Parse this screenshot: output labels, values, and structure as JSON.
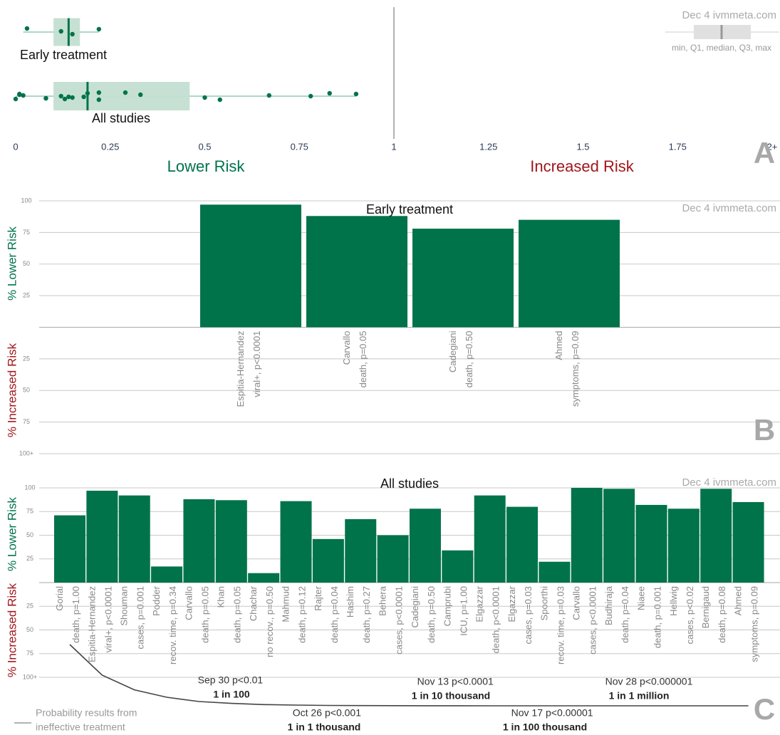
{
  "chart_data": [
    {
      "type": "box",
      "panel": "A",
      "watermark": "Dec 4 ivmmeta.com",
      "legend": "min, Q1, median, Q3, max",
      "lower_label": "Lower Risk",
      "higher_label": "Increased Risk",
      "xlim": [
        0,
        2
      ],
      "xticks": [
        0,
        0.25,
        0.5,
        0.75,
        1,
        1.25,
        1.5,
        1.75,
        {
          "value": 2,
          "label": "2+"
        }
      ],
      "color": "#00734a",
      "groups": [
        {
          "name": "Early treatment",
          "min": 0.02,
          "q1": 0.1,
          "median": 0.14,
          "q3": 0.17,
          "max": 0.22,
          "points": [
            0.03,
            0.12,
            0.15,
            0.22
          ]
        },
        {
          "name": "All studies",
          "min": 0.0,
          "q1": 0.1,
          "median": 0.19,
          "q3": 0.46,
          "max": 0.9,
          "points": [
            0.29,
            0.02,
            0.08,
            0.83,
            0.12,
            0.13,
            0.9,
            0.14,
            0.54,
            0.33,
            0.5,
            0.22,
            0.67,
            0.08,
            0.19,
            0.78,
            0.0,
            0.01,
            0.18,
            0.22,
            0.01,
            0.15
          ]
        }
      ]
    },
    {
      "type": "bar",
      "panel": "B",
      "title": "Early treatment",
      "watermark": "Dec 4 ivmmeta.com",
      "ylabel_positive": "% Lower Risk",
      "ylabel_negative": "% Increased Risk",
      "color": "#00734a",
      "ylim": [
        -100,
        100
      ],
      "yticks": [
        100,
        75,
        50,
        25,
        {
          "value": -25,
          "label": "25"
        },
        {
          "value": -50,
          "label": "50"
        },
        {
          "value": -75,
          "label": "75"
        },
        {
          "value": -100,
          "label": "100+"
        }
      ],
      "categories": [
        "Espitia-Hernandez",
        "Carvallo",
        "Cadegiani",
        "Ahmed"
      ],
      "details": [
        "viral+, p<0.0001",
        "death, p=0.05",
        "death, p=0.50",
        "symptoms, p=0.09"
      ],
      "values": [
        97,
        88,
        78,
        85
      ]
    },
    {
      "type": "bar",
      "panel": "C",
      "title": "All studies",
      "watermark": "Dec 4 ivmmeta.com",
      "ylabel_positive": "% Lower Risk",
      "ylabel_negative": "% Increased Risk",
      "color": "#00734a",
      "ylim": [
        -100,
        100
      ],
      "yticks": [
        100,
        75,
        50,
        25,
        {
          "value": -25,
          "label": "25"
        },
        {
          "value": -50,
          "label": "50"
        },
        {
          "value": -75,
          "label": "75"
        },
        {
          "value": -100,
          "label": "100+"
        }
      ],
      "categories": [
        "Gorial",
        "Espitia-Hernandez",
        "Shouman",
        "Podder",
        "Carvallo",
        "Khan",
        "Chachar",
        "Mahmud",
        "Rajter",
        "Hashim",
        "Behera",
        "Cadegiani",
        "Camprubi",
        "Elgazzar",
        "Elgazzar",
        "Spoorthi",
        "Carvallo",
        "Budhiraja",
        "Niaee",
        "Hellwig",
        "Bernigaud",
        "Ahmed"
      ],
      "details": [
        "death, p=1.00",
        "viral+, p<0.0001",
        "cases, p=0.001",
        "recov. time, p=0.34",
        "death, p=0.05",
        "death, p=0.05",
        "no recov., p=0.50",
        "death, p=0.12",
        "death, p=0.04",
        "death, p=0.27",
        "cases, p<0.0001",
        "death, p=0.50",
        "ICU, p=1.00",
        "death, p<0.0001",
        "cases, p=0.03",
        "recov. time, p=0.03",
        "cases, p<0.0001",
        "death, p=0.04",
        "death, p=0.001",
        "cases, p<0.02",
        "death, p=0.08",
        "symptoms, p=0.09"
      ],
      "values": [
        71,
        97,
        92,
        17,
        88,
        87,
        10,
        86,
        46,
        67,
        50,
        78,
        34,
        92,
        80,
        22,
        100,
        99,
        82,
        78,
        99,
        85
      ],
      "probability": {
        "name": [
          "Probability results from",
          "ineffective treatment"
        ],
        "color": "#444444",
        "ylim": [
          0,
          0.5
        ],
        "values": [
          0.5,
          0.25,
          0.13,
          0.07,
          0.035,
          0.02,
          0.01,
          0.006,
          0.003,
          0.002,
          0.001,
          0.0006,
          0.0003,
          0.0002,
          0.0001,
          5e-05,
          2e-05,
          1e-05,
          5e-06,
          2e-06,
          1e-06,
          5e-07
        ],
        "annotations": [
          {
            "date": "Sep 30",
            "p": "p<0.01",
            "odds": "1 in 100"
          },
          {
            "date": "Oct 26",
            "p": "p<0.001",
            "odds": "1 in 1 thousand"
          },
          {
            "date": "Nov 13",
            "p": "p<0.0001",
            "odds": "1 in 10 thousand"
          },
          {
            "date": "Nov 17",
            "p": "p<0.00001",
            "odds": "1 in 100 thousand"
          },
          {
            "date": "Nov 28",
            "p": "p<0.000001",
            "odds": "1 in 1 million"
          }
        ]
      }
    }
  ]
}
